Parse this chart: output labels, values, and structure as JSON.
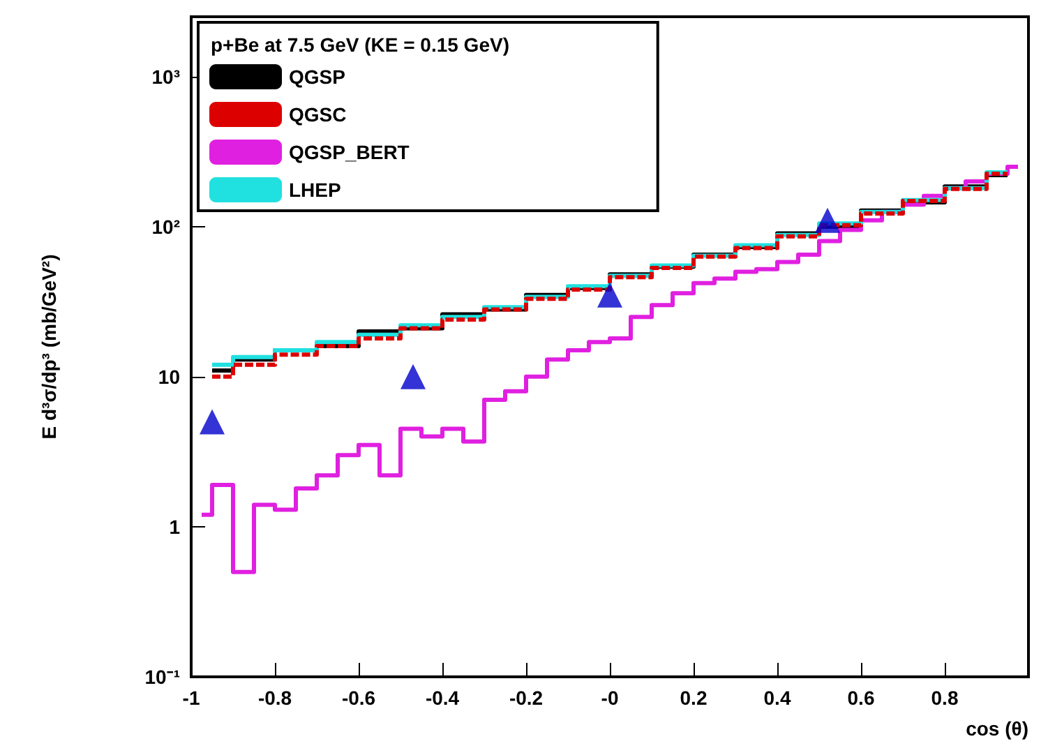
{
  "chart_data": {
    "type": "step",
    "xlabel": "cos (θ)",
    "ylabel": "E d³σ/dp³ (mb/GeV²)",
    "legend_title": "p+Be at 7.5 GeV (KE = 0.15 GeV)",
    "xlim": [
      -1,
      1
    ],
    "xticks": [
      -1,
      -0.8,
      -0.6,
      -0.4,
      -0.2,
      {
        "value": 0,
        "label": "-0"
      },
      0.2,
      0.4,
      0.6,
      0.8
    ],
    "ylim": [
      0.1,
      2500
    ],
    "yticks": [
      {
        "value": 0.1,
        "label": "10⁻¹"
      },
      1,
      10,
      {
        "value": 100,
        "label": "10²"
      },
      {
        "value": 1000,
        "label": "10³"
      }
    ],
    "log": "y",
    "grid": false,
    "legend": "top left",
    "series": [
      {
        "name": "QGSP",
        "color": "#000000",
        "x": [
          -0.95,
          -0.85,
          -0.75,
          -0.65,
          -0.55,
          -0.45,
          -0.35,
          -0.25,
          -0.15,
          -0.05,
          0.05,
          0.15,
          0.25,
          0.35,
          0.45,
          0.55,
          0.65,
          0.75,
          0.85,
          0.95
        ],
        "values": [
          11,
          13,
          15,
          16,
          20,
          21,
          26,
          28,
          35,
          39,
          48,
          54,
          65,
          73,
          90,
          100,
          128,
          145,
          185,
          220
        ]
      },
      {
        "name": "QGSC",
        "color": "#dd0000",
        "line_style": "dashed",
        "x": [
          -0.95,
          -0.85,
          -0.75,
          -0.65,
          -0.55,
          -0.45,
          -0.35,
          -0.25,
          -0.15,
          -0.05,
          0.05,
          0.15,
          0.25,
          0.35,
          0.45,
          0.55,
          0.65,
          0.75,
          0.85,
          0.95
        ],
        "values": [
          10,
          12,
          14,
          16,
          18,
          21,
          24,
          28,
          33,
          38,
          46,
          53,
          63,
          72,
          86,
          102,
          122,
          148,
          178,
          225
        ]
      },
      {
        "name": "QGSP_BERT",
        "color": "#e020e0",
        "x": [
          -0.975,
          -0.925,
          -0.875,
          -0.825,
          -0.775,
          -0.725,
          -0.675,
          -0.625,
          -0.575,
          -0.525,
          -0.475,
          -0.425,
          -0.375,
          -0.325,
          -0.275,
          -0.225,
          -0.175,
          -0.125,
          -0.075,
          -0.025,
          0.025,
          0.075,
          0.125,
          0.175,
          0.225,
          0.275,
          0.325,
          0.375,
          0.425,
          0.475,
          0.525,
          0.575,
          0.625,
          0.675,
          0.725,
          0.775,
          0.825,
          0.875,
          0.925,
          0.975
        ],
        "values": [
          1.2,
          1.9,
          0.5,
          1.4,
          1.3,
          1.8,
          2.2,
          3,
          3.5,
          2.2,
          4.5,
          4,
          4.5,
          3.7,
          7,
          8,
          10,
          13,
          15,
          17,
          18,
          25,
          30,
          36,
          42,
          45,
          50,
          52,
          58,
          65,
          80,
          95,
          110,
          125,
          140,
          160,
          180,
          200,
          225,
          250
        ]
      },
      {
        "name": "LHEP",
        "color": "#20e0e0",
        "x": [
          -0.95,
          -0.85,
          -0.75,
          -0.65,
          -0.55,
          -0.45,
          -0.35,
          -0.25,
          -0.15,
          -0.05,
          0.05,
          0.15,
          0.25,
          0.35,
          0.45,
          0.55,
          0.65,
          0.75,
          0.85,
          0.95
        ],
        "values": [
          12,
          13.5,
          15,
          17,
          19,
          22,
          25,
          29,
          34,
          40,
          47,
          55,
          64,
          75,
          88,
          105,
          125,
          150,
          180,
          230
        ]
      },
      {
        "type": "scatter",
        "marker": "triangle",
        "color": "#0000cc",
        "x": [
          -0.95,
          -0.47,
          0,
          0.52
        ],
        "values": [
          5,
          10,
          35,
          110
        ]
      }
    ]
  }
}
